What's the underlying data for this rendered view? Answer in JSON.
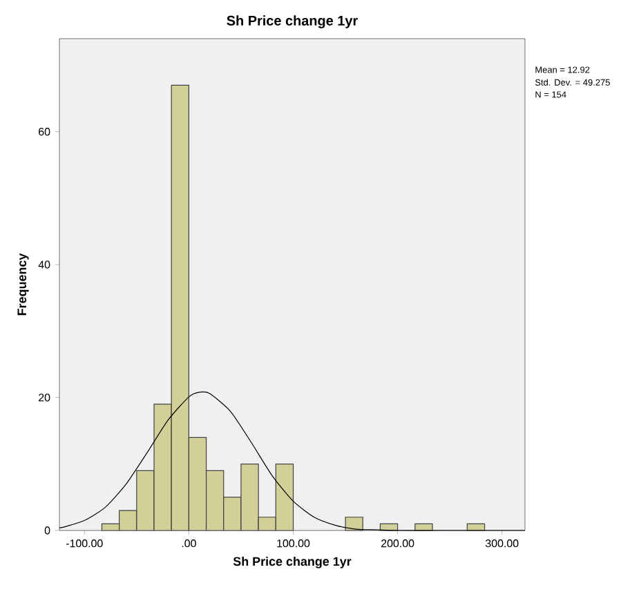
{
  "chart_data": {
    "type": "histogram",
    "title": "Sh Price change 1yr",
    "xlabel": "Sh Price change 1yr",
    "ylabel": "Frequency",
    "series": [
      {
        "type": "histogram",
        "color": "#d3cf98",
        "bins": [
          -83.33,
          -66.67,
          -50,
          -33.33,
          -16.67,
          0,
          16.67,
          33.33,
          50,
          66.67,
          83.33,
          100,
          116.67,
          133.33,
          150,
          166.67,
          183.33,
          200,
          216.67,
          233.33,
          250,
          266.67,
          283.33
        ],
        "values": [
          1,
          3,
          9,
          19,
          67,
          14,
          9,
          5,
          10,
          2,
          10,
          0,
          0,
          0,
          2,
          0,
          1,
          0,
          1,
          0,
          0,
          1
        ]
      },
      {
        "type": "line",
        "color": "#000000",
        "x": [
          -124,
          -120,
          -100,
          -80,
          -60,
          -40,
          -20,
          0,
          10,
          20,
          40,
          60,
          80,
          100,
          120,
          140,
          160,
          180,
          200,
          240,
          280,
          322
        ],
        "values": [
          0.4,
          0.5,
          1.5,
          3.5,
          7.0,
          11.7,
          16.6,
          20.1,
          20.8,
          20.6,
          17.9,
          13.2,
          8.2,
          4.4,
          2.0,
          0.8,
          0.2,
          0.1,
          0,
          0,
          0,
          0
        ]
      }
    ],
    "xlim": [
      -124,
      322
    ],
    "ylim": [
      0,
      74
    ],
    "xticks": [
      {
        "value": -100,
        "label": "-100.00"
      },
      {
        "value": 0,
        "label": ".00"
      },
      {
        "value": 100,
        "label": "100.00"
      },
      {
        "value": 200,
        "label": "200.00"
      },
      {
        "value": 300,
        "label": "300.00"
      }
    ],
    "yticks": [
      0,
      20,
      40,
      60
    ],
    "annotations": [
      "Mean = 12.92",
      "Std. Dev. = 49.275",
      "N = 154"
    ]
  }
}
